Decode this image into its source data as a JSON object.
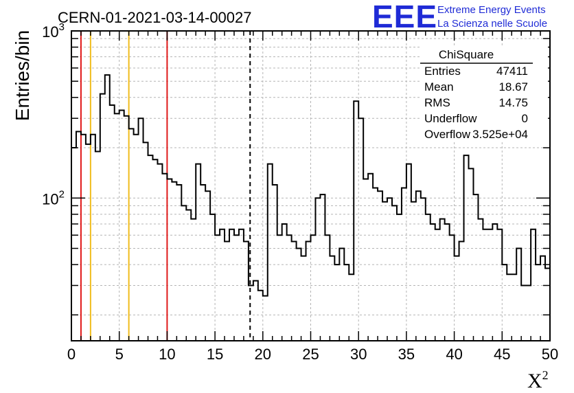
{
  "chart_data": {
    "type": "histogram",
    "title": "CERN-01-2021-03-14-00027",
    "xlabel": "X",
    "xlabel_sup": "2",
    "ylabel": "Entries/bin",
    "xlim": [
      0,
      50
    ],
    "ylim": [
      14,
      1000
    ],
    "y_scale": "log",
    "grid": true,
    "x_ticks": [
      "0",
      "5",
      "10",
      "15",
      "20",
      "25",
      "30",
      "35",
      "40",
      "45",
      "50"
    ],
    "y_tick_base": "10",
    "y_tick_exponents": [
      "2",
      "3"
    ],
    "bin_width": 0.5,
    "values": [
      200,
      250,
      240,
      210,
      240,
      190,
      420,
      545,
      360,
      320,
      335,
      310,
      260,
      240,
      300,
      215,
      180,
      170,
      160,
      140,
      130,
      125,
      120,
      90,
      85,
      75,
      160,
      120,
      110,
      80,
      60,
      65,
      55,
      65,
      60,
      65,
      55,
      30,
      32,
      28,
      26,
      160,
      120,
      60,
      70,
      60,
      55,
      50,
      45,
      55,
      60,
      100,
      105,
      60,
      45,
      40,
      50,
      40,
      35,
      380,
      300,
      130,
      140,
      115,
      110,
      95,
      100,
      90,
      80,
      115,
      160,
      95,
      110,
      100,
      80,
      70,
      65,
      75,
      70,
      60,
      45,
      55,
      180,
      150,
      105,
      75,
      65,
      65,
      70,
      65,
      40,
      35,
      35,
      50,
      30,
      30,
      65,
      40,
      45,
      38
    ],
    "vertical_lines": [
      {
        "x": 1,
        "color": "#e01818",
        "style": "solid"
      },
      {
        "x": 2,
        "color": "#f0bc1c",
        "style": "solid"
      },
      {
        "x": 6,
        "color": "#f0bc1c",
        "style": "solid"
      },
      {
        "x": 10,
        "color": "#e01818",
        "style": "solid"
      },
      {
        "x": 18.67,
        "color": "#000000",
        "style": "dashed"
      }
    ],
    "stats_box": {
      "title": "ChiSquare",
      "rows": [
        {
          "label": "Entries",
          "value": "47411"
        },
        {
          "label": "Mean",
          "value": "18.67"
        },
        {
          "label": "RMS",
          "value": "14.75"
        },
        {
          "label": "Underflow",
          "value": "0"
        },
        {
          "label": "Overflow",
          "value": "3.525e+04"
        }
      ]
    },
    "legend": "top-right",
    "line_color": "#000000"
  },
  "logo": {
    "big": "EEE",
    "line1": "Extreme Energy Events",
    "line2": "La Scienza nelle Scuole",
    "color": "#1f2bd6"
  }
}
